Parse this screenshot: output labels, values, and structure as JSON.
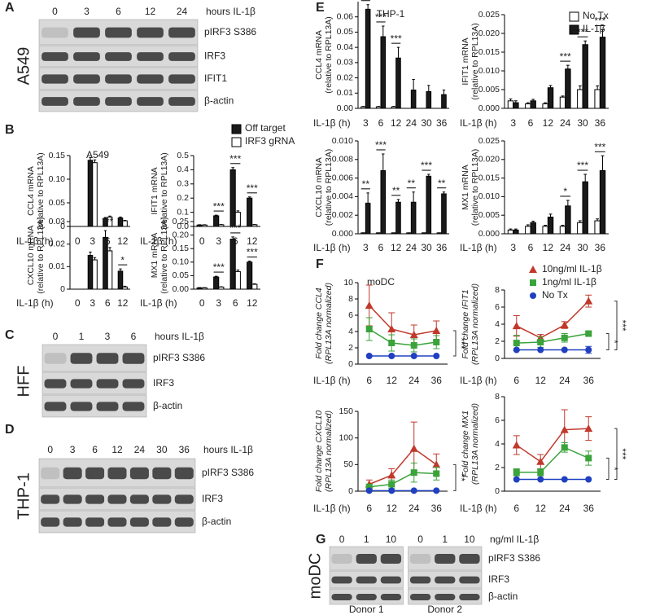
{
  "panel_letters": [
    "A",
    "B",
    "C",
    "D",
    "E",
    "F",
    "G"
  ],
  "blots": [
    {
      "cell": "A549",
      "lanes": [
        "0",
        "3",
        "6",
        "12",
        "24"
      ],
      "unit": "hours IL-1β",
      "rows": [
        "pIRF3 S386",
        "IRF3",
        "IFIT1",
        "β-actin"
      ]
    },
    {
      "cell": "HFF",
      "lanes": [
        "0",
        "1",
        "3",
        "6"
      ],
      "unit": "hours IL-1β",
      "rows": [
        "pIRF3 S386",
        "IRF3",
        "β-actin"
      ]
    },
    {
      "cell": "THP-1",
      "lanes": [
        "0",
        "3",
        "6",
        "12",
        "24",
        "30",
        "36"
      ],
      "unit": "hours IL-1β",
      "rows": [
        "pIRF3 S386",
        "IRF3",
        "β-actin"
      ]
    },
    {
      "cell": "moDC",
      "lanes": [
        "0",
        "1",
        "10",
        "0",
        "1",
        "10"
      ],
      "unit": "ng/ml IL-1β",
      "rows": [
        "pIRF3 S386",
        "IRF3",
        "β-actin"
      ],
      "donors": [
        "Donor 1",
        "Donor 2"
      ]
    }
  ],
  "chart_data": [
    {
      "type": "bar",
      "title": "A549",
      "ylabel": [
        "CCL4 mRNA",
        "(relative to RPL13A)"
      ],
      "xlabel": "IL-1β (h)",
      "categories": [
        "0",
        "3",
        "6",
        "12"
      ],
      "ylim": [
        0,
        0.15
      ],
      "yticks": [
        0,
        0.05,
        {
          "value": 0.1,
          "label": "0.10"
        },
        0.15
      ],
      "legend": false,
      "series": [
        {
          "name": "Off target",
          "color": "#1a1a1a",
          "values": [
            0,
            0.14,
            0.017,
            0.018
          ],
          "errors": [
            0,
            0.006,
            0.002,
            0.002
          ]
        },
        {
          "name": "IRF3 gRNA",
          "color": "#ffffff",
          "values": [
            0,
            0.135,
            0.02,
            0.012
          ],
          "errors": [
            0,
            0.006,
            0.002,
            0.001
          ]
        }
      ],
      "annotations": []
    },
    {
      "type": "bar",
      "ylabel": [
        "IFIT1 mRNA",
        "(relative to RPL13A)"
      ],
      "xlabel": "IL-1β (h)",
      "categories": [
        "0",
        "3",
        "6",
        "12"
      ],
      "ylim": [
        0,
        0.5
      ],
      "yticks": [
        {
          "value": 0,
          "label": "0.0"
        },
        0.1,
        0.2,
        0.3,
        0.4,
        0.5
      ],
      "legend": true,
      "series": [
        {
          "name": "Off target",
          "color": "#1a1a1a",
          "values": [
            0.01,
            0.075,
            0.4,
            0.2
          ],
          "errors": [
            0.002,
            0.005,
            0.015,
            0.008
          ]
        },
        {
          "name": "IRF3 gRNA",
          "color": "#ffffff",
          "values": [
            0.01,
            0.012,
            0.1,
            0.012
          ],
          "errors": [
            0.002,
            0.002,
            0.01,
            0.002
          ]
        }
      ],
      "annotations": [
        {
          "text": "***",
          "category": "3",
          "color": "#222"
        },
        {
          "text": "***",
          "category": "6",
          "color": "#222"
        },
        {
          "text": "***",
          "category": "12",
          "color": "#222"
        }
      ]
    },
    {
      "type": "bar",
      "ylabel": [
        "CXCL10 mRNA",
        "(relative to RPL13A)"
      ],
      "xlabel": "IL-1β (h)",
      "categories": [
        "0",
        "3",
        "6",
        "12"
      ],
      "ylim": [
        0,
        0.03
      ],
      "yticks": [
        0,
        0.01,
        0.02,
        0.03
      ],
      "legend": false,
      "series": [
        {
          "name": "Off target",
          "color": "#1a1a1a",
          "values": [
            0,
            0.015,
            0.023,
            0.008
          ],
          "errors": [
            0,
            0.0015,
            0.003,
            0.001
          ]
        },
        {
          "name": "IRF3 gRNA",
          "color": "#ffffff",
          "values": [
            0,
            0.013,
            0.017,
            0.001
          ],
          "errors": [
            0,
            0.001,
            0.0015,
            0.0003
          ]
        }
      ],
      "annotations": [
        {
          "text": "***",
          "category": "6",
          "color": "#222"
        },
        {
          "text": "*",
          "category": "12",
          "color": "#222"
        }
      ]
    },
    {
      "type": "bar",
      "ylabel": [
        "MX1 mRNA",
        "(relative to RPL13A)"
      ],
      "xlabel": "IL-1β (h)",
      "categories": [
        "0",
        "3",
        "6",
        "12"
      ],
      "ylim": [
        0,
        0.25
      ],
      "yticks": [
        {
          "value": 0,
          "label": "0.00"
        },
        0.05,
        {
          "value": 0.1,
          "label": "0.10"
        },
        0.15,
        {
          "value": 0.2,
          "label": "0.20"
        },
        0.25
      ],
      "legend": false,
      "series": [
        {
          "name": "Off target",
          "color": "#1a1a1a",
          "values": [
            0.005,
            0.045,
            0.185,
            0.1
          ],
          "errors": [
            0.001,
            0.003,
            0.008,
            0.004
          ]
        },
        {
          "name": "IRF3 gRNA",
          "color": "#ffffff",
          "values": [
            0.005,
            0.008,
            0.065,
            0.018
          ],
          "errors": [
            0.001,
            0.001,
            0.006,
            0.002
          ]
        }
      ],
      "annotations": [
        {
          "text": "***",
          "category": "3",
          "color": "#222"
        },
        {
          "text": "***",
          "category": "6",
          "color": "#222"
        },
        {
          "text": "***",
          "category": "12",
          "color": "#222"
        }
      ]
    },
    {
      "type": "bar",
      "title": "THP-1",
      "ylabel": [
        "CCL4 mRNA",
        "(relative to RPL13A)"
      ],
      "xlabel": "IL-1β (h)",
      "categories": [
        "3",
        "6",
        "12",
        "24",
        "30",
        "36"
      ],
      "ylim": [
        0,
        0.07
      ],
      "yticks": [
        {
          "value": 0,
          "label": "0.00"
        },
        0.01,
        0.02,
        0.03,
        0.04,
        0.05,
        0.06
      ],
      "legend": false,
      "series": [
        {
          "name": "No Tx",
          "color": "#ffffff",
          "values": [
            0.001,
            0.001,
            0.001,
            0,
            0,
            0
          ],
          "errors": [
            0.0003,
            0.0003,
            0.0003,
            0,
            0,
            0
          ]
        },
        {
          "name": "IL-1β",
          "color": "#1a1a1a",
          "values": [
            0.065,
            0.047,
            0.033,
            0.012,
            0.011,
            0.009
          ],
          "errors": [
            0.003,
            0.007,
            0.007,
            0.007,
            0.004,
            0.003
          ]
        }
      ],
      "annotations": [
        {
          "text": "***",
          "category": "3",
          "color": "#222"
        },
        {
          "text": "***",
          "category": "6",
          "color": "#222"
        },
        {
          "text": "***",
          "category": "12",
          "color": "#222"
        }
      ]
    },
    {
      "type": "bar",
      "ylabel": [
        "IFIT1 mRNA",
        "(relative to RPL13A)"
      ],
      "xlabel": "IL-1β (h)",
      "categories": [
        "3",
        "6",
        "12",
        "24",
        "30",
        "36"
      ],
      "ylim": [
        0,
        0.025
      ],
      "yticks": [
        {
          "value": 0,
          "label": "0.000"
        },
        0.005,
        {
          "value": 0.01,
          "label": "0.010"
        },
        0.015,
        {
          "value": 0.02,
          "label": "0.020"
        },
        0.025
      ],
      "legend": true,
      "series": [
        {
          "name": "No Tx",
          "color": "#ffffff",
          "values": [
            0.002,
            0.0012,
            0.0012,
            0.003,
            0.005,
            0.005
          ],
          "errors": [
            0.0005,
            0.0003,
            0.0003,
            0.0003,
            0.001,
            0.001
          ]
        },
        {
          "name": "IL-1β",
          "color": "#1a1a1a",
          "values": [
            0.0015,
            0.002,
            0.0055,
            0.0105,
            0.017,
            0.019
          ],
          "errors": [
            0.0005,
            0.0004,
            0.0006,
            0.001,
            0.001,
            0.002
          ]
        }
      ],
      "annotations": [
        {
          "text": "***",
          "category": "24",
          "color": "#222"
        },
        {
          "text": "***",
          "category": "30",
          "color": "#222"
        },
        {
          "text": "***",
          "category": "36",
          "color": "#222"
        }
      ]
    },
    {
      "type": "bar",
      "ylabel": [
        "CXCL10 mRNA",
        "(relative to RPL13A)"
      ],
      "xlabel": "IL-1β (h)",
      "categories": [
        "3",
        "6",
        "12",
        "24",
        "30",
        "36"
      ],
      "ylim": [
        0,
        0.01
      ],
      "yticks": [
        {
          "value": 0,
          "label": "0.000"
        },
        0.002,
        0.004,
        0.006,
        0.008,
        {
          "value": 0.01,
          "label": "0.010"
        }
      ],
      "legend": false,
      "series": [
        {
          "name": "No Tx",
          "color": "#ffffff",
          "values": [
            0.0001,
            0.0001,
            0.0001,
            0.0001,
            0.0001,
            0.0001
          ],
          "errors": [
            0,
            0,
            0,
            0,
            0,
            0
          ]
        },
        {
          "name": "IL-1β",
          "color": "#1a1a1a",
          "values": [
            0.0033,
            0.0068,
            0.0034,
            0.0034,
            0.0062,
            0.0043
          ],
          "errors": [
            0.0011,
            0.0018,
            0.0003,
            0.0011,
            0.0002,
            0.0002
          ]
        }
      ],
      "annotations": [
        {
          "text": "**",
          "category": "3",
          "color": "#222"
        },
        {
          "text": "***",
          "category": "6",
          "color": "#222"
        },
        {
          "text": "**",
          "category": "12",
          "color": "#222"
        },
        {
          "text": "**",
          "category": "24",
          "color": "#222"
        },
        {
          "text": "***",
          "category": "30",
          "color": "#222"
        },
        {
          "text": "**",
          "category": "36",
          "color": "#222"
        }
      ]
    },
    {
      "type": "bar",
      "ylabel": [
        "MX1 mRNA",
        "(relative to RPL13A)"
      ],
      "xlabel": "IL-1β (h)",
      "categories": [
        "3",
        "6",
        "12",
        "24",
        "30",
        "36"
      ],
      "ylim": [
        0,
        0.025
      ],
      "yticks": [
        {
          "value": 0,
          "label": "0.000"
        },
        0.005,
        {
          "value": 0.01,
          "label": "0.010"
        },
        0.015,
        {
          "value": 0.02,
          "label": "0.020"
        },
        0.025
      ],
      "legend": false,
      "series": [
        {
          "name": "No Tx",
          "color": "#ffffff",
          "values": [
            0.001,
            0.002,
            0.002,
            0.002,
            0.003,
            0.0035
          ],
          "errors": [
            0.0003,
            0.0004,
            0.0003,
            0.0003,
            0.0005,
            0.0005
          ]
        },
        {
          "name": "IL-1β",
          "color": "#1a1a1a",
          "values": [
            0.001,
            0.003,
            0.0045,
            0.0075,
            0.014,
            0.017
          ],
          "errors": [
            0.0003,
            0.0004,
            0.0008,
            0.0015,
            0.002,
            0.004
          ]
        }
      ],
      "annotations": [
        {
          "text": "*",
          "category": "24",
          "color": "#222"
        },
        {
          "text": "***",
          "category": "30",
          "color": "#222"
        },
        {
          "text": "***",
          "category": "36",
          "color": "#222"
        }
      ]
    },
    {
      "type": "line",
      "title": "moDC",
      "ylabel": [
        "Fold change CCL4",
        "(RPL13A normalized)"
      ],
      "xlabel": "IL-1β (h)",
      "categories": [
        "6",
        "12",
        "24",
        "36"
      ],
      "ylim": [
        0,
        10
      ],
      "yticks": [
        0,
        2,
        4,
        6,
        8,
        10
      ],
      "legend": false,
      "series": [
        {
          "name": "10ng/ml IL-1β",
          "color": "#c0392b",
          "marker": "triangle",
          "values": [
            7.2,
            4.3,
            3.6,
            4.1
          ],
          "errors": [
            2.5,
            2,
            1.2,
            1.2
          ]
        },
        {
          "name": "1ng/ml IL-1β",
          "color": "#3aa33a",
          "marker": "square",
          "values": [
            4.3,
            2.6,
            2.3,
            2.7
          ],
          "errors": [
            1.4,
            1,
            0.8,
            0.8
          ]
        },
        {
          "name": "No Tx",
          "color": "#2040c0",
          "marker": "circle",
          "values": [
            1,
            1,
            1,
            1
          ],
          "errors": [
            0,
            0,
            0,
            0
          ]
        }
      ],
      "brackets": [
        {
          "text": "***",
          "color": "#d62728",
          "series": "10ng/ml IL-1β"
        }
      ]
    },
    {
      "type": "line",
      "ylabel": [
        "Fold change IFIT1",
        "(RPL13A normalized)"
      ],
      "xlabel": "IL-1β (h)",
      "categories": [
        "6",
        "12",
        "24",
        "36"
      ],
      "ylim": [
        0,
        8
      ],
      "yticks": [
        0,
        2,
        4,
        6,
        8
      ],
      "legend": true,
      "series": [
        {
          "name": "10ng/ml IL-1β",
          "color": "#c0392b",
          "marker": "triangle",
          "values": [
            3.8,
            2.4,
            3.9,
            6.7
          ],
          "errors": [
            1.2,
            0.4,
            0.4,
            0.7
          ]
        },
        {
          "name": "1ng/ml IL-1β",
          "color": "#3aa33a",
          "marker": "square",
          "values": [
            1.8,
            1.9,
            2.4,
            2.9
          ],
          "errors": [
            0.9,
            0.6,
            0.5,
            0.2
          ]
        },
        {
          "name": "No Tx",
          "color": "#2040c0",
          "marker": "circle",
          "values": [
            1,
            1,
            1,
            1
          ],
          "errors": [
            0,
            0,
            0,
            0.4
          ]
        }
      ],
      "brackets": [
        {
          "text": "*",
          "color": "#333333",
          "series": "1ng/ml IL-1β"
        },
        {
          "text": "***",
          "color": "#d62728",
          "series": "10ng/ml IL-1β"
        }
      ]
    },
    {
      "type": "line",
      "ylabel": [
        "Fold change CXCL10",
        "(RPL13A normalized)"
      ],
      "xlabel": "IL-1β (h)",
      "categories": [
        "6",
        "12",
        "24",
        "36"
      ],
      "ylim": [
        0,
        150
      ],
      "yticks": [
        0,
        50,
        100,
        150
      ],
      "legend": false,
      "series": [
        {
          "name": "10ng/ml IL-1β",
          "color": "#c0392b",
          "marker": "triangle",
          "values": [
            13,
            30,
            80,
            50
          ],
          "errors": [
            8,
            12,
            50,
            20
          ]
        },
        {
          "name": "1ng/ml IL-1β",
          "color": "#3aa33a",
          "marker": "square",
          "values": [
            8,
            13,
            35,
            33
          ],
          "errors": [
            5,
            8,
            18,
            12
          ]
        },
        {
          "name": "No Tx",
          "color": "#2040c0",
          "marker": "circle",
          "values": [
            1,
            1,
            1,
            1
          ],
          "errors": [
            0,
            0,
            0,
            0
          ]
        }
      ],
      "brackets": [
        {
          "text": "**",
          "color": "#d62728",
          "series": "10ng/ml IL-1β"
        }
      ]
    },
    {
      "type": "line",
      "ylabel": [
        "Fold change MX1",
        "(RPL13A normalized)"
      ],
      "xlabel": "IL-1β (h)",
      "categories": [
        "6",
        "12",
        "24",
        "36"
      ],
      "ylim": [
        0,
        8
      ],
      "yticks": [
        0,
        2,
        4,
        6,
        8
      ],
      "legend": false,
      "series": [
        {
          "name": "10ng/ml IL-1β",
          "color": "#c0392b",
          "marker": "triangle",
          "values": [
            3.9,
            2.5,
            5.2,
            5.3
          ],
          "errors": [
            0.8,
            0.6,
            1.7,
            1
          ]
        },
        {
          "name": "1ng/ml IL-1β",
          "color": "#3aa33a",
          "marker": "square",
          "values": [
            1.6,
            1.6,
            3.7,
            2.8
          ],
          "errors": [
            0.3,
            0.3,
            0.4,
            0.6
          ]
        },
        {
          "name": "No Tx",
          "color": "#2040c0",
          "marker": "circle",
          "values": [
            1,
            1,
            1,
            1
          ],
          "errors": [
            0,
            0,
            0,
            0
          ]
        }
      ],
      "brackets": [
        {
          "text": "*",
          "color": "#333333",
          "series": "1ng/ml IL-1β"
        },
        {
          "text": "***",
          "color": "#d62728",
          "series": "10ng/ml IL-1β"
        }
      ]
    }
  ]
}
